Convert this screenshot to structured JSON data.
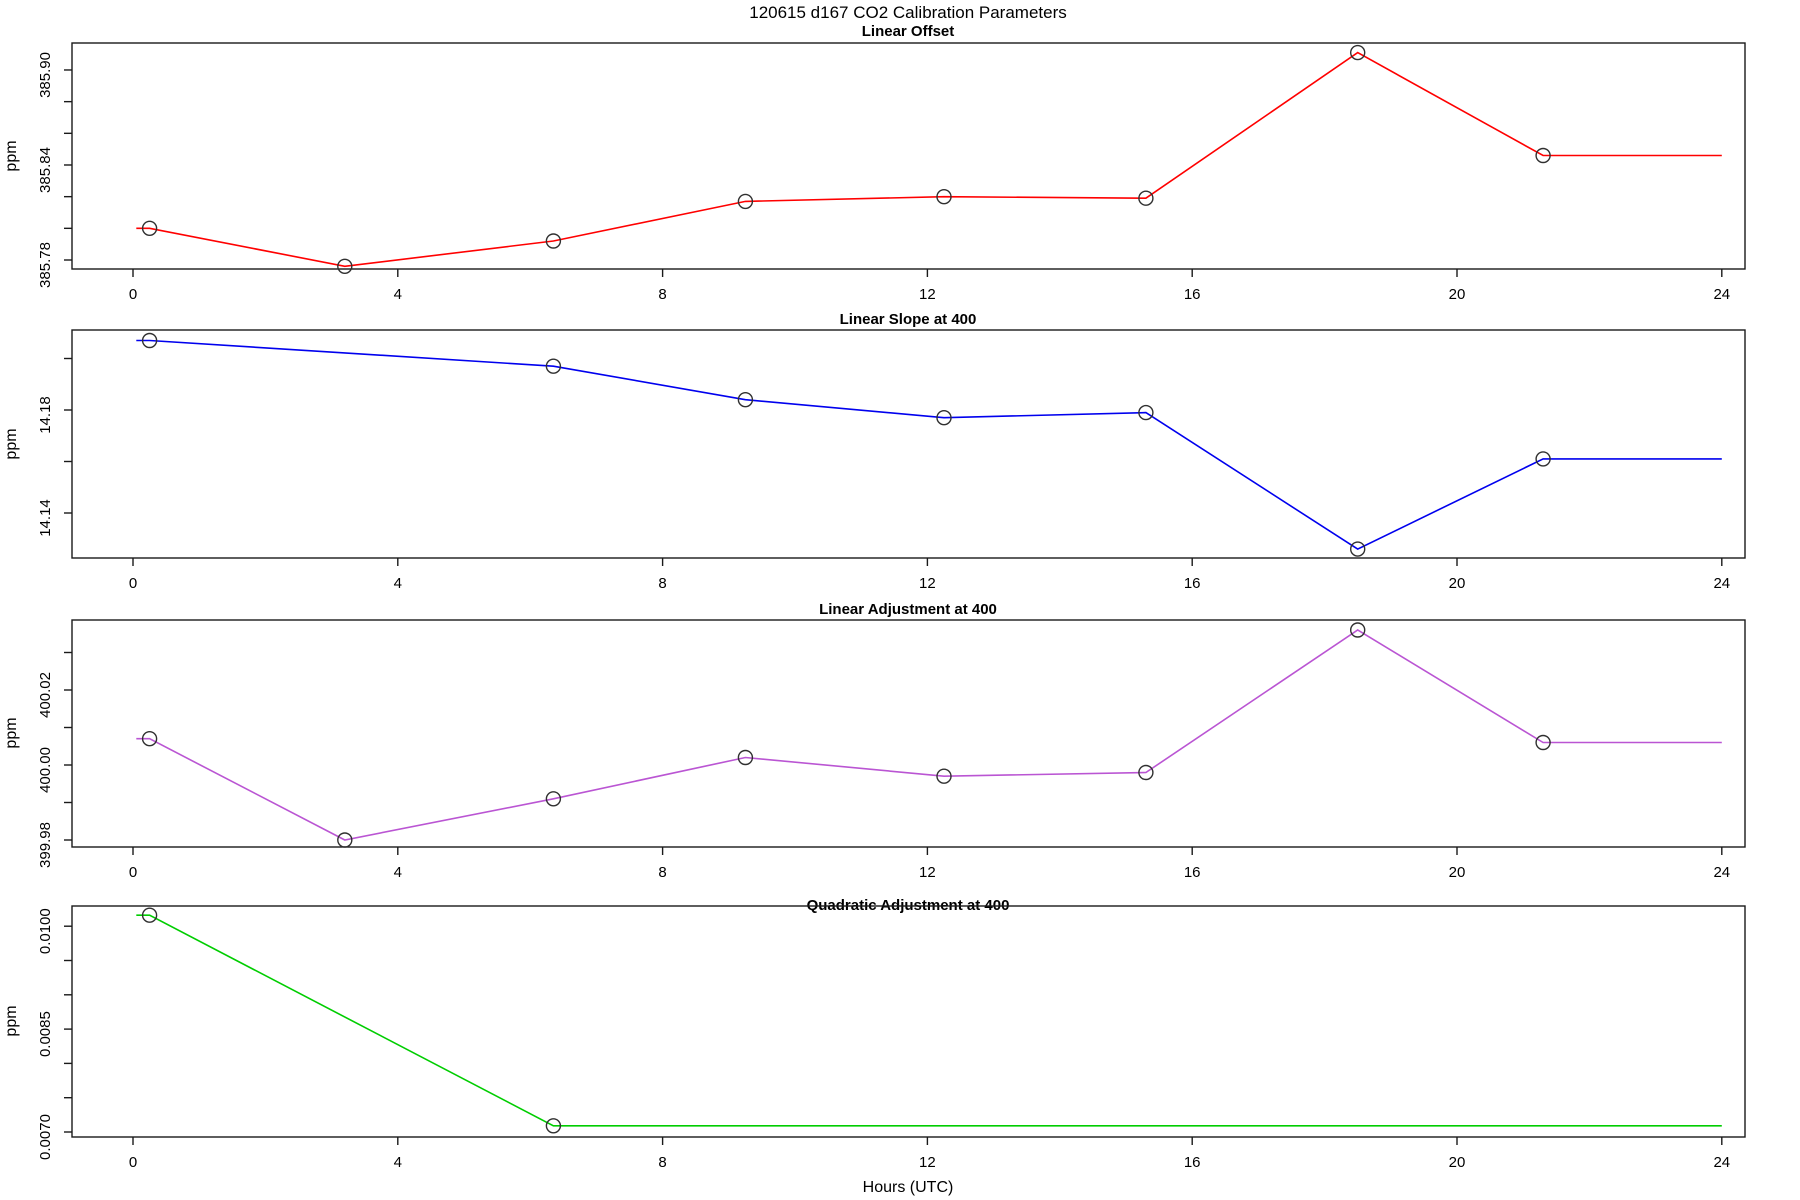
{
  "page_title": "120615   d167   CO2 Calibration Parameters",
  "x_axis": {
    "label": "Hours (UTC)",
    "tick_labels": [
      "0",
      "4",
      "8",
      "12",
      "16",
      "20",
      "24"
    ],
    "tick_values": [
      0,
      4,
      8,
      12,
      16,
      20,
      24
    ],
    "xlim": [
      0,
      24.2
    ]
  },
  "chart_data": [
    {
      "type": "line",
      "title": "Linear Offset",
      "ylabel": "ppm",
      "color": "#FF0000",
      "marker": "open-circle",
      "x": [
        0.25,
        3.2,
        6.35,
        9.25,
        12.25,
        15.3,
        18.5,
        21.3
      ],
      "y": [
        385.8,
        385.776,
        385.792,
        385.817,
        385.82,
        385.819,
        385.911,
        385.846
      ],
      "line_x_start": 0.05,
      "line_x_end": 24,
      "ylim": [
        385.774,
        385.917
      ],
      "y_tick_values": [
        385.78,
        385.8,
        385.82,
        385.84,
        385.86,
        385.88,
        385.9
      ],
      "y_tick_labels": [
        "385.78",
        "385.84",
        "385.90"
      ],
      "y_label_step": 3,
      "grid": false
    },
    {
      "type": "line",
      "title": "Linear Slope at 400",
      "ylabel": "ppm",
      "color": "#0000EE",
      "marker": "open-circle",
      "x": [
        0.25,
        6.35,
        9.25,
        12.25,
        15.3,
        18.5,
        21.3
      ],
      "y": [
        14.207,
        14.197,
        14.184,
        14.177,
        14.179,
        14.126,
        14.161
      ],
      "line_x_start": 0.05,
      "line_x_end": 24,
      "ylim": [
        14.122,
        14.211
      ],
      "y_tick_values": [
        14.14,
        14.16,
        14.18,
        14.2
      ],
      "y_tick_labels": [
        "14.14",
        "14.18"
      ],
      "y_label_step": 2,
      "grid": false
    },
    {
      "type": "line",
      "title": "Linear Adjustment at 400",
      "ylabel": "ppm",
      "color": "#BA55D3",
      "marker": "open-circle",
      "x": [
        0.25,
        3.2,
        6.35,
        9.25,
        12.25,
        15.3,
        18.5,
        21.3
      ],
      "y": [
        400.007,
        399.98,
        399.991,
        400.002,
        399.997,
        399.998,
        400.036,
        400.006
      ],
      "line_x_start": 0.05,
      "line_x_end": 24,
      "ylim": [
        399.978,
        400.039
      ],
      "y_tick_values": [
        399.98,
        399.99,
        400.0,
        400.01,
        400.02,
        400.03
      ],
      "y_tick_labels": [
        "399.98",
        "400.00",
        "400.02"
      ],
      "y_label_step": 2,
      "grid": false
    },
    {
      "type": "line",
      "title": "Quadratic Adjustment at 400",
      "ylabel": "ppm",
      "color": "#00CD00",
      "marker": "open-circle",
      "x": [
        0.25,
        6.35
      ],
      "y": [
        0.01016,
        0.00709
      ],
      "line_x_start": 0.05,
      "line_x_end": 24,
      "ylim": [
        0.00693,
        0.01029
      ],
      "y_tick_values": [
        0.007,
        0.0075,
        0.008,
        0.0085,
        0.009,
        0.0095,
        0.01
      ],
      "y_tick_labels": [
        "0.0070",
        "0.0085",
        "0.0100"
      ],
      "y_label_step": 3,
      "grid": false
    }
  ]
}
